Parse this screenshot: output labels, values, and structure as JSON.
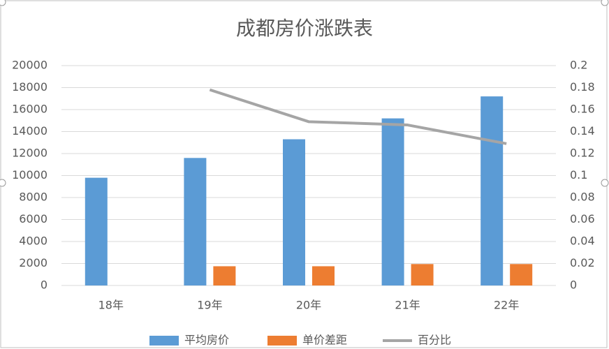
{
  "chart_data": {
    "type": "combo",
    "title": "成都房价涨跌表",
    "categories": [
      "18年",
      "19年",
      "20年",
      "21年",
      "22年"
    ],
    "series": [
      {
        "name": "平均房价",
        "type": "bar",
        "color": "#5b9bd5",
        "values": [
          9800,
          11600,
          13300,
          15200,
          17200
        ]
      },
      {
        "name": "单价差距",
        "type": "bar",
        "color": "#ed7d31",
        "values": [
          null,
          1750,
          1750,
          1950,
          1950
        ]
      },
      {
        "name": "百分比",
        "type": "line",
        "axis": "y2",
        "color": "#a5a5a5",
        "values": [
          null,
          0.178,
          0.149,
          0.146,
          0.129
        ]
      }
    ],
    "ylim": [
      0,
      20000
    ],
    "yticks": [
      0,
      2000,
      4000,
      6000,
      8000,
      10000,
      12000,
      14000,
      16000,
      18000,
      20000
    ],
    "y2lim": [
      0,
      0.2
    ],
    "y2ticks": [
      0,
      0.02,
      0.04,
      0.06,
      0.08,
      0.1,
      0.12,
      0.14,
      0.16,
      0.18,
      0.2
    ],
    "grid": true,
    "legend": "bottom"
  }
}
